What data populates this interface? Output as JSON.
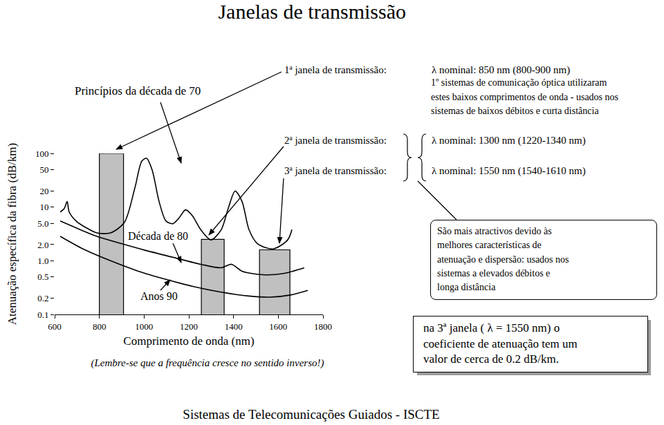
{
  "chart_data": {
    "type": "line",
    "title": "Janelas de transmissão",
    "x_label": "Comprimento de onda (nm)",
    "y_label": "Atenuação específica da fibra (dB/km)",
    "note": "(Lembre-se que a frequência cresce no sentido inverso!)",
    "footer": "Sistemas de Telecomunicações Guiados - ISCTE",
    "log": "y",
    "grid": false,
    "xlim": [
      600,
      1800
    ],
    "xticks": [
      600,
      800,
      1000,
      1200,
      1400,
      1600,
      1800
    ],
    "ylim": [
      0.1,
      100
    ],
    "yticks": [
      0.1,
      0.2,
      0.5,
      {
        "value": 1,
        "label": "1.0"
      },
      {
        "value": 2,
        "label": "2.0"
      },
      {
        "value": 5,
        "label": "5.0"
      },
      10,
      20,
      50,
      100
    ],
    "series": [
      {
        "type": "bar",
        "color": "#c0c0c0",
        "x_ranges": [
          [
            800,
            908
          ],
          [
            1256,
            1358
          ],
          [
            1516,
            1652
          ]
        ],
        "values": [
          100,
          2.5,
          1.6
        ]
      },
      {
        "name": "Princípios da década de 70",
        "color": "#000000",
        "x": [
          625,
          643,
          656,
          665,
          696,
          742,
          789,
          850,
          912,
          959,
          990,
          1011,
          1036,
          1067,
          1098,
          1129,
          1160,
          1185,
          1215,
          1253,
          1299,
          1345,
          1376,
          1407,
          1438,
          1469,
          1506,
          1577,
          1642,
          1661
        ],
        "values": [
          8.1,
          9.4,
          12.7,
          8.1,
          5.5,
          4.1,
          3.3,
          3.3,
          5.2,
          23,
          72,
          81,
          49,
          12.7,
          5.5,
          4.9,
          6.6,
          8.9,
          7.0,
          3.8,
          2.45,
          3.8,
          9.4,
          19.9,
          12.7,
          3.8,
          2.1,
          1.66,
          2.45,
          3.8
        ]
      },
      {
        "name": "Década de 80",
        "color": "#000000",
        "x": [
          625,
          696,
          789,
          896,
          1004,
          1129,
          1253,
          1345,
          1391,
          1438,
          1531,
          1624,
          1716
        ],
        "values": [
          5.5,
          4.1,
          2.85,
          2.1,
          1.57,
          1.16,
          0.86,
          0.74,
          0.86,
          0.64,
          0.55,
          0.58,
          0.74
        ]
      },
      {
        "name": "Anos 90",
        "color": "#000000",
        "x": [
          625,
          727,
          850,
          974,
          1098,
          1222,
          1345,
          1469,
          1562,
          1655,
          1732
        ],
        "values": [
          2.85,
          1.66,
          1.0,
          0.64,
          0.45,
          0.33,
          0.26,
          0.22,
          0.21,
          0.23,
          0.28
        ]
      }
    ],
    "windows": [
      {
        "label": "1ª janela de transmissão:",
        "nominal": "λ nominal: 850 nm (800-900 nm)",
        "description": [
          "1º sistemas de comunicação óptica utilizaram",
          "estes baixos comprimentos de onda - usados nos",
          "sistemas de baixos débitos e curta distância"
        ]
      },
      {
        "label": "2ª janela de transmissão:",
        "nominal": "λ nominal: 1300 nm (1220-1340 nm)"
      },
      {
        "label": "3ª janela de transmissão:",
        "nominal": "λ nominal: 1550 nm (1540-1610 nm)"
      }
    ],
    "callout": [
      "São mais atractivos devido às",
      "melhores características de",
      "atenuação e dispersão: usados nos",
      "sistemas a elevados débitos e",
      "longa distância"
    ],
    "highlight": [
      "na 3ª janela ( λ = 1550 nm) o",
      "coeficiente de atenuação tem um",
      "valor de cerca de 0.2 dB/km."
    ]
  }
}
